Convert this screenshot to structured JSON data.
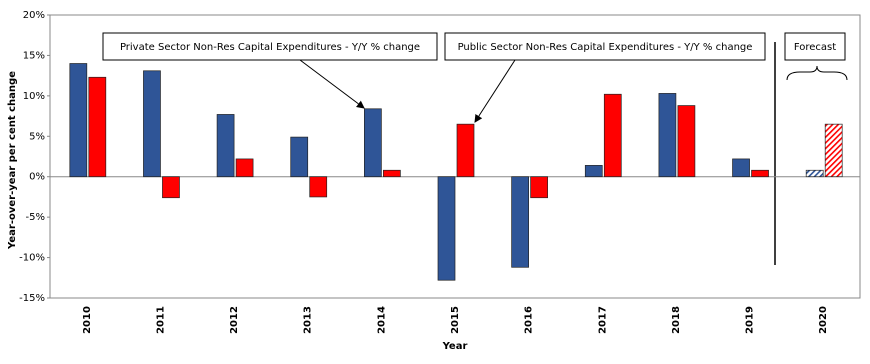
{
  "chart_data": {
    "type": "bar",
    "categories": [
      "2010",
      "2011",
      "2012",
      "2013",
      "2014",
      "2015",
      "2016",
      "2017",
      "2018",
      "2019",
      "2020"
    ],
    "series": [
      {
        "name": "Private Sector Non-Res Capital Expenditures - Y/Y % change",
        "color": "#2f5597",
        "values": [
          14.0,
          13.1,
          7.7,
          4.9,
          8.4,
          -12.8,
          -11.2,
          1.4,
          10.3,
          2.2,
          0.8
        ]
      },
      {
        "name": "Public Sector Non-Res Capital Expenditures - Y/Y % change",
        "color": "#ff0000",
        "values": [
          12.3,
          -2.6,
          2.2,
          -2.5,
          0.8,
          6.5,
          -2.6,
          10.2,
          8.8,
          0.8,
          6.5
        ]
      }
    ],
    "xlabel": "Year",
    "ylabel": "Year-over-year per cent change",
    "ylim": [
      -15,
      20
    ],
    "yticks": [
      {
        "value": -15,
        "label": "-15%"
      },
      {
        "value": -10,
        "label": "-10%"
      },
      {
        "value": -5,
        "label": "-5%"
      },
      {
        "value": 0,
        "label": "0%"
      },
      {
        "value": 5,
        "label": "5%"
      },
      {
        "value": 10,
        "label": "10%"
      },
      {
        "value": 15,
        "label": "15%"
      },
      {
        "value": 20,
        "label": "20%"
      }
    ],
    "forecast": {
      "label": "Forecast",
      "categories": [
        "2020"
      ]
    }
  }
}
